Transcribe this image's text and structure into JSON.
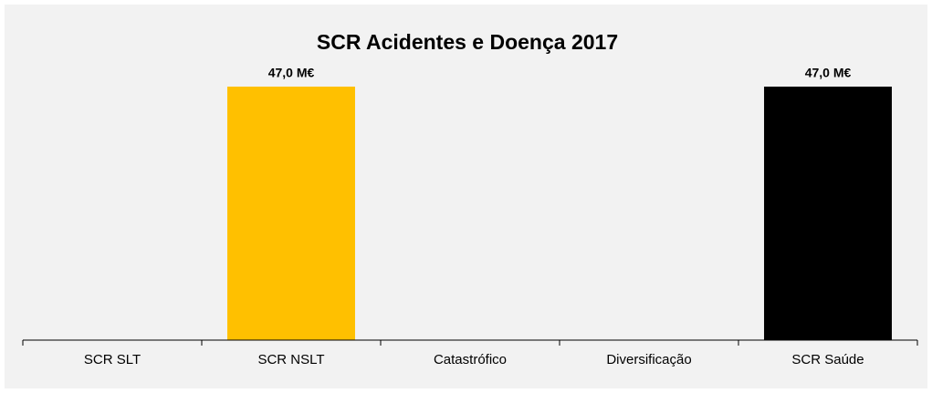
{
  "chart_data": {
    "type": "bar",
    "title": "SCR Acidentes e Doença 2017",
    "categories": [
      "SCR SLT",
      "SCR NSLT",
      "Catastrófico",
      "Diversificação",
      "SCR Saúde"
    ],
    "values": [
      0,
      47.0,
      0,
      0,
      47.0
    ],
    "value_labels": [
      null,
      "47,0 M€",
      null,
      null,
      "47,0 M€"
    ],
    "colors": [
      null,
      "#ffc000",
      null,
      null,
      "#000000"
    ]
  }
}
